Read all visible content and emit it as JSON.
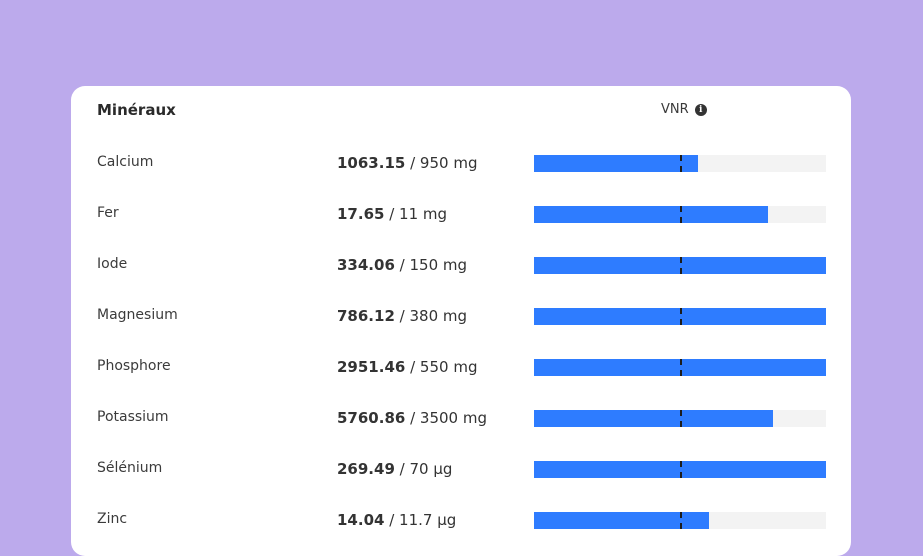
{
  "card": {
    "title": "Minéraux",
    "reference_label": "VNR",
    "info_icon": "info-icon"
  },
  "colors": {
    "background": "#bcaaec",
    "bar_fill": "#2e7cff",
    "bar_track": "#f3f3f3",
    "marker": "#1c1c1c"
  },
  "minerals": [
    {
      "name": "Calcium",
      "current": "1063.15",
      "target": "/ 950 mg",
      "fill_fraction": 0.56
    },
    {
      "name": "Fer",
      "current": "17.65",
      "target": "/ 11 mg",
      "fill_fraction": 0.8
    },
    {
      "name": "Iode",
      "current": "334.06",
      "target": "/ 150 mg",
      "fill_fraction": 1.0
    },
    {
      "name": "Magnesium",
      "current": "786.12",
      "target": "/ 380 mg",
      "fill_fraction": 1.0
    },
    {
      "name": "Phosphore",
      "current": "2951.46",
      "target": "/ 550 mg",
      "fill_fraction": 1.0
    },
    {
      "name": "Potassium",
      "current": "5760.86",
      "target": "/ 3500 mg",
      "fill_fraction": 0.82
    },
    {
      "name": "Sélénium",
      "current": "269.49",
      "target": "/ 70 µg",
      "fill_fraction": 1.0
    },
    {
      "name": "Zinc",
      "current": "14.04",
      "target": "/ 11.7 µg",
      "fill_fraction": 0.6
    }
  ]
}
